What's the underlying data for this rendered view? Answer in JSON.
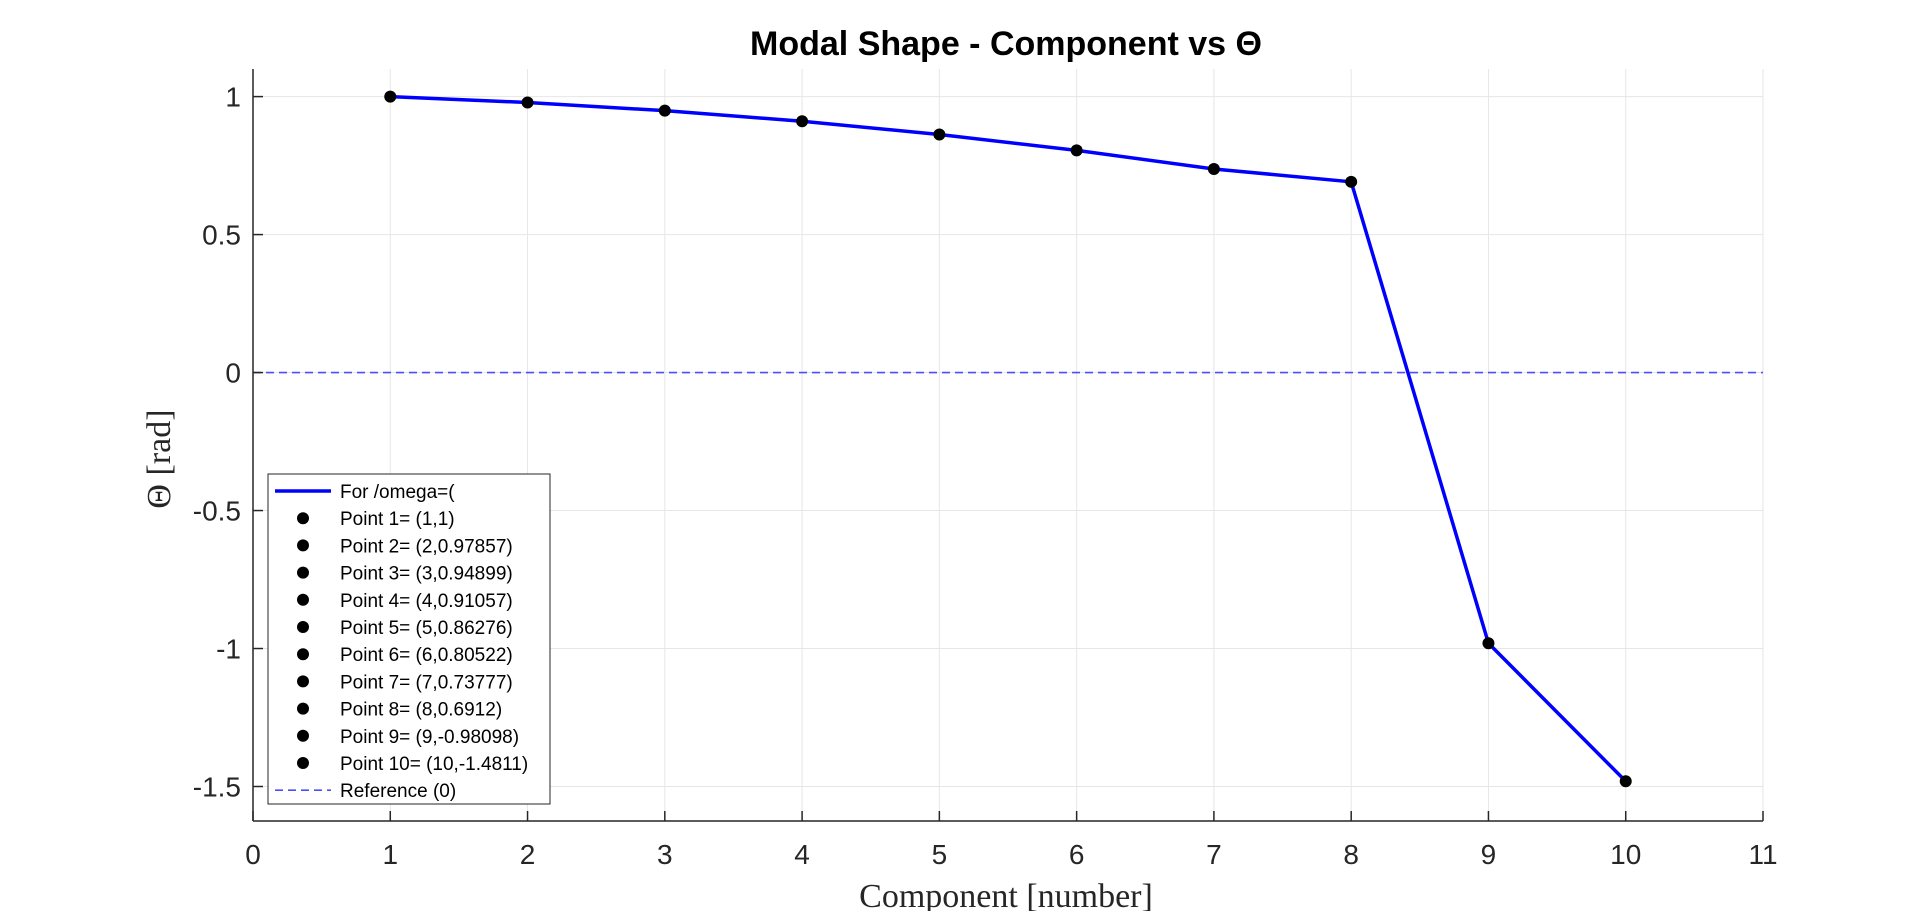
{
  "chart_data": {
    "type": "line",
    "title": "Modal Shape - Component vs Θ",
    "xlabel": "Component [number]",
    "ylabel": "Θ [rad]",
    "xlim": [
      0,
      11
    ],
    "ylim": [
      -1.625,
      1.1
    ],
    "xticks": [
      0,
      1,
      2,
      3,
      4,
      5,
      6,
      7,
      8,
      9,
      10,
      11
    ],
    "yticks": [
      -1.5,
      -1,
      -0.5,
      0,
      0.5,
      1
    ],
    "xtick_labels": [
      "0",
      "1",
      "2",
      "3",
      "4",
      "5",
      "6",
      "7",
      "8",
      "9",
      "10",
      "11"
    ],
    "ytick_labels": [
      "-1.5",
      "-1",
      "-0.5",
      "0",
      "0.5",
      "1"
    ],
    "grid": true,
    "legend_position": "bottom-left",
    "series": [
      {
        "name": "For /omega=(",
        "color": "#0000ff",
        "x": [
          1,
          2,
          3,
          4,
          5,
          6,
          7,
          8,
          9,
          10
        ],
        "values": [
          1,
          0.97857,
          0.94899,
          0.91057,
          0.86276,
          0.80522,
          0.73777,
          0.6912,
          -0.98098,
          -1.4811
        ]
      },
      {
        "name": "Reference (0)",
        "color": "#4d4dff",
        "style": "dashed",
        "x": [
          0,
          11
        ],
        "values": [
          0,
          0
        ]
      }
    ],
    "points": [
      {
        "label": "Point 1= (1,1)",
        "x": 1,
        "y": 1
      },
      {
        "label": "Point 2= (2,0.97857)",
        "x": 2,
        "y": 0.97857
      },
      {
        "label": "Point 3= (3,0.94899)",
        "x": 3,
        "y": 0.94899
      },
      {
        "label": "Point 4= (4,0.91057)",
        "x": 4,
        "y": 0.91057
      },
      {
        "label": "Point 5= (5,0.86276)",
        "x": 5,
        "y": 0.86276
      },
      {
        "label": "Point 6= (6,0.80522)",
        "x": 6,
        "y": 0.80522
      },
      {
        "label": "Point 7= (7,0.73777)",
        "x": 7,
        "y": 0.73777
      },
      {
        "label": "Point 8= (8,0.6912)",
        "x": 8,
        "y": 0.6912
      },
      {
        "label": "Point 9= (9,-0.98098)",
        "x": 9,
        "y": -0.98098
      },
      {
        "label": "Point 10= (10,-1.4811)",
        "x": 10,
        "y": -1.4811
      }
    ],
    "point_color": "#000000",
    "grid_color": "#e6e6e6",
    "axis_color": "#262626"
  }
}
